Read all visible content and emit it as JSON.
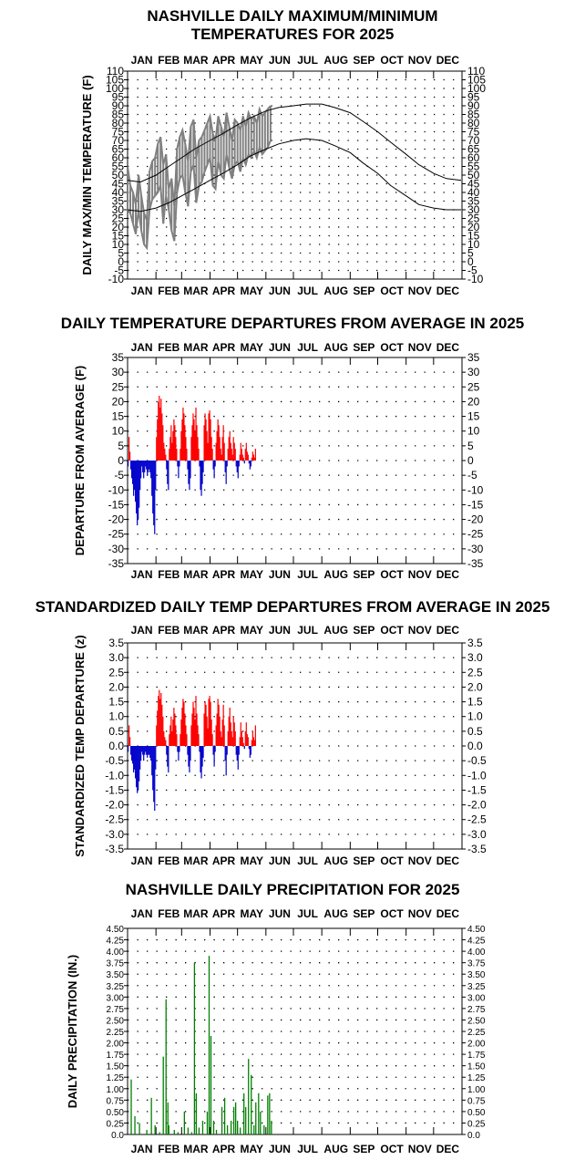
{
  "months": [
    "JAN",
    "FEB",
    "MAR",
    "APR",
    "MAY",
    "JUN",
    "JUL",
    "AUG",
    "SEP",
    "OCT",
    "NOV",
    "DEC"
  ],
  "colors": {
    "actual": "#808080",
    "normal": "#000000",
    "positive": "#ff0000",
    "negative": "#0000cc",
    "precip": "#008000",
    "grid": "#000000"
  },
  "chart_data": [
    {
      "type": "line",
      "title": "NASHVILLE DAILY MAXIMUM/MINIMUM TEMPERATURES FOR 2025",
      "title_lines": [
        "NASHVILLE DAILY MAXIMUM/MINIMUM",
        "TEMPERATURES FOR 2025"
      ],
      "ylabel": "DAILY MAX/MIN TEMPERATURE (F)",
      "ylim": [
        -10,
        110
      ],
      "yticks": [
        -10,
        -5,
        0,
        5,
        10,
        15,
        20,
        25,
        30,
        35,
        40,
        45,
        50,
        55,
        60,
        65,
        70,
        75,
        80,
        85,
        90,
        95,
        100,
        105,
        110
      ],
      "x_units": "day of year",
      "xlim": [
        1,
        365
      ],
      "normal_high": [
        [
          1,
          47
        ],
        [
          15,
          46
        ],
        [
          32,
          50
        ],
        [
          46,
          55
        ],
        [
          60,
          60
        ],
        [
          74,
          65
        ],
        [
          91,
          70
        ],
        [
          105,
          74
        ],
        [
          121,
          79
        ],
        [
          135,
          83
        ],
        [
          152,
          87
        ],
        [
          166,
          89
        ],
        [
          182,
          90
        ],
        [
          196,
          91
        ],
        [
          213,
          91
        ],
        [
          227,
          89
        ],
        [
          244,
          86
        ],
        [
          258,
          81
        ],
        [
          274,
          75
        ],
        [
          288,
          69
        ],
        [
          305,
          62
        ],
        [
          319,
          56
        ],
        [
          335,
          51
        ],
        [
          349,
          48
        ],
        [
          365,
          47
        ]
      ],
      "normal_low": [
        [
          1,
          30
        ],
        [
          15,
          29
        ],
        [
          32,
          31
        ],
        [
          46,
          34
        ],
        [
          60,
          38
        ],
        [
          74,
          42
        ],
        [
          91,
          47
        ],
        [
          105,
          51
        ],
        [
          121,
          56
        ],
        [
          135,
          61
        ],
        [
          152,
          65
        ],
        [
          166,
          68
        ],
        [
          182,
          70
        ],
        [
          196,
          71
        ],
        [
          213,
          70
        ],
        [
          227,
          67
        ],
        [
          244,
          63
        ],
        [
          258,
          57
        ],
        [
          274,
          51
        ],
        [
          288,
          44
        ],
        [
          305,
          38
        ],
        [
          319,
          33
        ],
        [
          335,
          31
        ],
        [
          349,
          30
        ],
        [
          365,
          30
        ]
      ],
      "actual_high": [
        [
          1,
          55
        ],
        [
          4,
          44
        ],
        [
          7,
          40
        ],
        [
          10,
          33
        ],
        [
          13,
          50
        ],
        [
          16,
          38
        ],
        [
          19,
          28
        ],
        [
          22,
          24
        ],
        [
          25,
          52
        ],
        [
          28,
          58
        ],
        [
          31,
          60
        ],
        [
          34,
          68
        ],
        [
          37,
          72
        ],
        [
          40,
          56
        ],
        [
          43,
          62
        ],
        [
          46,
          42
        ],
        [
          49,
          48
        ],
        [
          52,
          32
        ],
        [
          55,
          65
        ],
        [
          58,
          72
        ],
        [
          61,
          76
        ],
        [
          64,
          68
        ],
        [
          67,
          58
        ],
        [
          70,
          78
        ],
        [
          73,
          82
        ],
        [
          76,
          60
        ],
        [
          79,
          70
        ],
        [
          82,
          72
        ],
        [
          85,
          76
        ],
        [
          88,
          80
        ],
        [
          91,
          84
        ],
        [
          94,
          74
        ],
        [
          97,
          70
        ],
        [
          100,
          84
        ],
        [
          103,
          78
        ],
        [
          106,
          72
        ],
        [
          109,
          86
        ],
        [
          112,
          78
        ],
        [
          115,
          70
        ],
        [
          118,
          82
        ],
        [
          121,
          80
        ],
        [
          124,
          76
        ],
        [
          127,
          84
        ],
        [
          130,
          78
        ],
        [
          133,
          86
        ],
        [
          136,
          82
        ],
        [
          139,
          84
        ],
        [
          142,
          80
        ],
        [
          145,
          88
        ],
        [
          148,
          84
        ],
        [
          151,
          86
        ],
        [
          154,
          88
        ],
        [
          157,
          90
        ]
      ],
      "actual_low": [
        [
          1,
          30
        ],
        [
          4,
          28
        ],
        [
          7,
          22
        ],
        [
          10,
          16
        ],
        [
          13,
          30
        ],
        [
          16,
          18
        ],
        [
          19,
          10
        ],
        [
          22,
          8
        ],
        [
          25,
          30
        ],
        [
          28,
          36
        ],
        [
          31,
          38
        ],
        [
          34,
          40
        ],
        [
          37,
          44
        ],
        [
          40,
          22
        ],
        [
          43,
          38
        ],
        [
          46,
          30
        ],
        [
          49,
          18
        ],
        [
          52,
          12
        ],
        [
          55,
          40
        ],
        [
          58,
          48
        ],
        [
          61,
          50
        ],
        [
          64,
          40
        ],
        [
          67,
          32
        ],
        [
          70,
          52
        ],
        [
          73,
          56
        ],
        [
          76,
          34
        ],
        [
          79,
          44
        ],
        [
          82,
          46
        ],
        [
          85,
          52
        ],
        [
          88,
          56
        ],
        [
          91,
          60
        ],
        [
          94,
          44
        ],
        [
          97,
          42
        ],
        [
          100,
          58
        ],
        [
          103,
          50
        ],
        [
          106,
          48
        ],
        [
          109,
          62
        ],
        [
          112,
          54
        ],
        [
          115,
          48
        ],
        [
          118,
          56
        ],
        [
          121,
          58
        ],
        [
          124,
          52
        ],
        [
          127,
          60
        ],
        [
          130,
          56
        ],
        [
          133,
          62
        ],
        [
          136,
          60
        ],
        [
          139,
          64
        ],
        [
          142,
          60
        ],
        [
          145,
          66
        ],
        [
          148,
          62
        ],
        [
          151,
          64
        ],
        [
          154,
          66
        ],
        [
          157,
          70
        ]
      ]
    },
    {
      "type": "bar",
      "title": "DAILY TEMPERATURE DEPARTURES FROM AVERAGE IN 2025",
      "ylabel": "DEPARTURE FROM AVERAGE (F)",
      "ylim": [
        -35,
        35
      ],
      "yticks": [
        -35,
        -30,
        -25,
        -20,
        -15,
        -10,
        -5,
        0,
        5,
        10,
        15,
        20,
        25,
        30,
        35
      ],
      "x_units": "day of year",
      "xlim": [
        1,
        365
      ],
      "start_day": 1,
      "values": [
        -2,
        8,
        3,
        -3,
        -6,
        -8,
        -12,
        -10,
        -14,
        -18,
        -22,
        -20,
        -16,
        -10,
        -6,
        -2,
        -4,
        -6,
        -4,
        -2,
        -3,
        -5,
        -4,
        -3,
        -4,
        -6,
        -12,
        -18,
        -22,
        -25,
        -10,
        8,
        14,
        20,
        22,
        18,
        21,
        16,
        12,
        6,
        4,
        2,
        -3,
        -8,
        -10,
        4,
        8,
        12,
        6,
        10,
        14,
        12,
        8,
        4,
        -2,
        -6,
        -2,
        4,
        10,
        14,
        18,
        16,
        12,
        8,
        4,
        -3,
        -8,
        -10,
        -6,
        8,
        12,
        16,
        14,
        10,
        18,
        12,
        8,
        4,
        -2,
        -10,
        -12,
        -8,
        -4,
        12,
        16,
        14,
        10,
        6,
        16,
        17,
        14,
        8,
        4,
        -3,
        -6,
        -2,
        6,
        10,
        14,
        12,
        8,
        4,
        2,
        8,
        12,
        6,
        -4,
        -8,
        -2,
        4,
        8,
        10,
        6,
        4,
        2,
        8,
        6,
        4,
        -2,
        -4,
        -6,
        -2,
        2,
        6,
        4,
        2,
        1,
        -1,
        4,
        6,
        3,
        2,
        -1,
        -3,
        -2,
        1,
        3,
        2,
        1,
        4
      ]
    },
    {
      "type": "bar",
      "title": "STANDARDIZED DAILY TEMP DEPARTURES FROM AVERAGE IN 2025",
      "ylabel": "STANDARDIZED TEMP DEPARTURE (z)",
      "ylim": [
        -3.5,
        3.5
      ],
      "yticks": [
        "-3.5",
        "-3.0",
        "-2.5",
        "-2.0",
        "-1.5",
        "-1.0",
        "-0.5",
        "0.0",
        "0.5",
        "1.0",
        "1.5",
        "2.0",
        "2.5",
        "3.0",
        "3.5"
      ],
      "x_units": "day of year",
      "xlim": [
        1,
        365
      ],
      "start_day": 1,
      "values": [
        -0.2,
        0.7,
        0.3,
        -0.3,
        -0.5,
        -0.6,
        -0.9,
        -0.8,
        -1.1,
        -1.4,
        -1.6,
        -1.5,
        -1.2,
        -0.8,
        -0.5,
        -0.2,
        -0.3,
        -0.5,
        -0.3,
        -0.2,
        -0.3,
        -0.4,
        -0.3,
        -0.3,
        -0.4,
        -0.5,
        -1.0,
        -1.5,
        -1.9,
        -2.2,
        -0.8,
        0.7,
        1.2,
        1.7,
        1.9,
        1.6,
        1.8,
        1.4,
        1.0,
        0.5,
        0.3,
        0.2,
        -0.3,
        -0.7,
        -0.9,
        0.4,
        0.7,
        1.0,
        0.5,
        0.9,
        1.3,
        1.1,
        0.7,
        0.4,
        -0.2,
        -0.5,
        -0.2,
        0.4,
        0.9,
        1.3,
        1.6,
        1.5,
        1.1,
        0.7,
        0.4,
        -0.3,
        -0.7,
        -0.9,
        -0.5,
        0.7,
        1.1,
        1.5,
        1.3,
        0.9,
        1.7,
        1.1,
        0.7,
        0.4,
        -0.2,
        -0.9,
        -1.1,
        -0.7,
        -0.4,
        1.1,
        1.5,
        1.4,
        1.0,
        0.6,
        1.6,
        1.7,
        1.5,
        0.9,
        0.4,
        -0.3,
        -0.7,
        -0.2,
        0.7,
        1.1,
        1.6,
        1.4,
        1.0,
        0.5,
        0.3,
        0.9,
        1.4,
        0.7,
        -0.5,
        -1.0,
        -0.3,
        0.5,
        1.0,
        1.3,
        0.8,
        0.5,
        0.3,
        1.0,
        0.8,
        0.5,
        -0.3,
        -0.5,
        -0.8,
        -0.3,
        0.3,
        0.8,
        0.5,
        0.3,
        0.1,
        -0.1,
        0.5,
        0.8,
        0.4,
        0.3,
        -0.1,
        -0.4,
        -0.3,
        0.2,
        0.5,
        0.3,
        0.2,
        0.7
      ]
    },
    {
      "type": "bar",
      "title": "NASHVILLE DAILY PRECIPITATION FOR 2025",
      "ylabel": "DAILY PRECIPITATION (IN.)",
      "ylim": [
        0,
        4.5
      ],
      "yticks": [
        "0.0",
        "0.25",
        "0.50",
        "0.75",
        "1.00",
        "1.25",
        "1.50",
        "1.75",
        "2.00",
        "2.25",
        "2.50",
        "2.75",
        "3.00",
        "3.25",
        "3.50",
        "3.75",
        "4.00",
        "4.25",
        "4.50"
      ],
      "x_units": "day of year",
      "xlim": [
        1,
        365
      ],
      "points": [
        [
          5,
          1.2
        ],
        [
          9,
          0.4
        ],
        [
          14,
          0.25
        ],
        [
          22,
          0.1
        ],
        [
          27,
          0.8
        ],
        [
          31,
          0.2
        ],
        [
          36,
          0.05
        ],
        [
          40,
          1.7
        ],
        [
          43,
          2.95
        ],
        [
          45,
          0.7
        ],
        [
          46,
          0.2
        ],
        [
          52,
          0.1
        ],
        [
          56,
          0.05
        ],
        [
          63,
          0.5
        ],
        [
          67,
          0.15
        ],
        [
          71,
          0.05
        ],
        [
          74,
          3.75
        ],
        [
          76,
          0.9
        ],
        [
          79,
          0.15
        ],
        [
          83,
          0.3
        ],
        [
          88,
          0.5
        ],
        [
          90,
          3.9
        ],
        [
          92,
          2.15
        ],
        [
          95,
          0.3
        ],
        [
          98,
          0.1
        ],
        [
          104,
          0.6
        ],
        [
          107,
          0.8
        ],
        [
          110,
          0.2
        ],
        [
          114,
          0.3
        ],
        [
          117,
          0.6
        ],
        [
          119,
          0.7
        ],
        [
          121,
          0.3
        ],
        [
          124,
          0.15
        ],
        [
          128,
          0.9
        ],
        [
          130,
          0.6
        ],
        [
          133,
          1.65
        ],
        [
          136,
          1.3
        ],
        [
          139,
          0.2
        ],
        [
          141,
          0.7
        ],
        [
          144,
          0.9
        ],
        [
          146,
          0.5
        ],
        [
          150,
          0.2
        ],
        [
          154,
          0.85
        ],
        [
          156,
          0.9
        ],
        [
          158,
          0.3
        ]
      ]
    }
  ]
}
